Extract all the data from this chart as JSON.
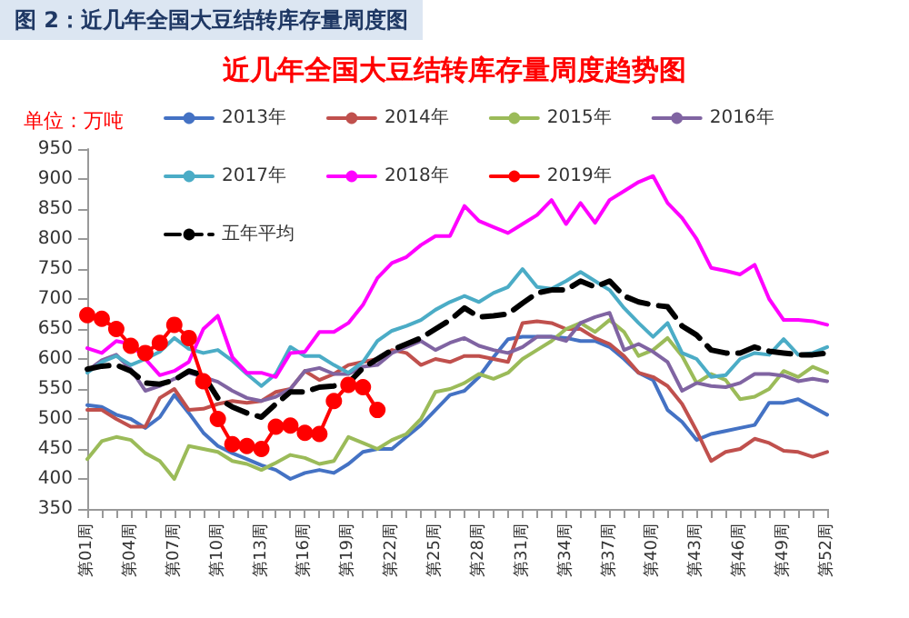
{
  "chart_data": {
    "type": "line",
    "title": "图 2：近几年全国大豆结转库存量周度图",
    "subtitle": "近几年全国大豆结转库存量周度趋势图",
    "ylabel": "单位：万吨",
    "categories": [
      "第01周",
      null,
      null,
      "第04周",
      null,
      null,
      "第07周",
      null,
      null,
      "第10周",
      null,
      null,
      "第13周",
      null,
      null,
      "第16周",
      null,
      null,
      "第19周",
      null,
      null,
      "第22周",
      null,
      null,
      "第25周",
      null,
      null,
      "第28周",
      null,
      null,
      "第31周",
      null,
      null,
      "第34周",
      null,
      null,
      "第37周",
      null,
      null,
      "第40周",
      null,
      null,
      "第43周",
      null,
      null,
      "第46周",
      null,
      null,
      "第49周",
      null,
      null,
      "第52周"
    ],
    "ylim": [
      350,
      950
    ],
    "yticks": [
      350,
      400,
      450,
      500,
      550,
      600,
      650,
      700,
      750,
      800,
      850,
      900,
      950
    ],
    "grid": false,
    "legend": "top",
    "series": [
      {
        "name": "2013年",
        "color": "#4472c4",
        "values": [
          523,
          520,
          507,
          500,
          485,
          503,
          540,
          510,
          477,
          455,
          443,
          433,
          423,
          415,
          400,
          410,
          415,
          410,
          425,
          445,
          450,
          450,
          470,
          490,
          515,
          540,
          547,
          570,
          603,
          633,
          637,
          637,
          637,
          635,
          630,
          630,
          620,
          600,
          577,
          565,
          515,
          495,
          465,
          475,
          480,
          485,
          490,
          527,
          527,
          533,
          520,
          507
        ]
      },
      {
        "name": "2014年",
        "color": "#c0504d",
        "values": [
          515,
          515,
          500,
          487,
          487,
          535,
          550,
          515,
          517,
          525,
          530,
          527,
          530,
          545,
          550,
          580,
          565,
          575,
          590,
          595,
          600,
          615,
          610,
          590,
          600,
          595,
          605,
          605,
          600,
          595,
          660,
          663,
          660,
          650,
          650,
          635,
          625,
          605,
          577,
          570,
          555,
          525,
          480,
          430,
          445,
          450,
          467,
          460,
          447,
          445,
          437,
          445
        ]
      },
      {
        "name": "2015年",
        "color": "#9bbb59",
        "values": [
          433,
          463,
          470,
          465,
          443,
          430,
          400,
          455,
          450,
          445,
          430,
          425,
          415,
          427,
          440,
          435,
          425,
          430,
          470,
          460,
          450,
          465,
          475,
          500,
          545,
          550,
          560,
          575,
          567,
          577,
          600,
          615,
          630,
          650,
          660,
          645,
          665,
          645,
          605,
          615,
          635,
          605,
          560,
          575,
          565,
          533,
          537,
          550,
          580,
          570,
          587,
          577
        ]
      },
      {
        "name": "2016年",
        "color": "#8064a2",
        "values": [
          580,
          598,
          607,
          583,
          547,
          555,
          567,
          577,
          570,
          562,
          547,
          535,
          530,
          537,
          550,
          580,
          585,
          575,
          575,
          587,
          590,
          610,
          620,
          630,
          615,
          627,
          635,
          622,
          615,
          610,
          620,
          637,
          637,
          630,
          660,
          670,
          677,
          615,
          625,
          612,
          595,
          547,
          560,
          555,
          553,
          560,
          575,
          575,
          572,
          563,
          567,
          563
        ]
      },
      {
        "name": "2017年",
        "color": "#4bacc6",
        "values": [
          577,
          595,
          605,
          590,
          600,
          612,
          635,
          617,
          610,
          615,
          597,
          575,
          555,
          575,
          620,
          605,
          605,
          590,
          577,
          595,
          630,
          647,
          655,
          665,
          682,
          695,
          705,
          695,
          710,
          720,
          750,
          720,
          717,
          730,
          745,
          730,
          715,
          685,
          660,
          637,
          660,
          610,
          600,
          570,
          573,
          600,
          610,
          607,
          633,
          607,
          610,
          620
        ]
      },
      {
        "name": "2018年",
        "color": "#ff00ff",
        "values": [
          618,
          610,
          630,
          625,
          600,
          573,
          580,
          595,
          650,
          672,
          603,
          577,
          577,
          570,
          610,
          612,
          645,
          645,
          660,
          690,
          735,
          760,
          770,
          790,
          805,
          805,
          855,
          830,
          820,
          810,
          825,
          840,
          865,
          825,
          860,
          827,
          865,
          880,
          895,
          905,
          860,
          835,
          800,
          752,
          747,
          741,
          757,
          700,
          665,
          665,
          663,
          657
        ]
      },
      {
        "name": "2019年",
        "color": "#ff0000",
        "marker": "circle",
        "values": [
          673,
          667,
          650,
          622,
          610,
          627,
          657,
          635,
          563,
          500,
          458,
          455,
          450,
          487,
          489,
          477,
          475,
          530,
          557,
          553,
          515,
          null,
          null,
          null,
          null,
          null,
          null,
          null,
          null,
          null,
          null,
          null,
          null,
          null,
          null,
          null,
          null,
          null,
          null,
          null,
          null,
          null,
          null,
          null,
          null,
          null,
          null,
          null,
          null,
          null,
          null,
          null
        ]
      },
      {
        "name": "五年平均",
        "color": "#000000",
        "line_style": "dashed",
        "values": [
          583,
          588,
          590,
          580,
          560,
          558,
          565,
          580,
          573,
          535,
          520,
          510,
          503,
          525,
          545,
          545,
          553,
          555,
          560,
          585,
          600,
          615,
          625,
          635,
          650,
          665,
          685,
          670,
          672,
          675,
          693,
          710,
          715,
          715,
          730,
          720,
          730,
          705,
          695,
          690,
          687,
          655,
          640,
          615,
          610,
          610,
          620,
          613,
          610,
          607,
          607,
          610
        ]
      }
    ]
  }
}
